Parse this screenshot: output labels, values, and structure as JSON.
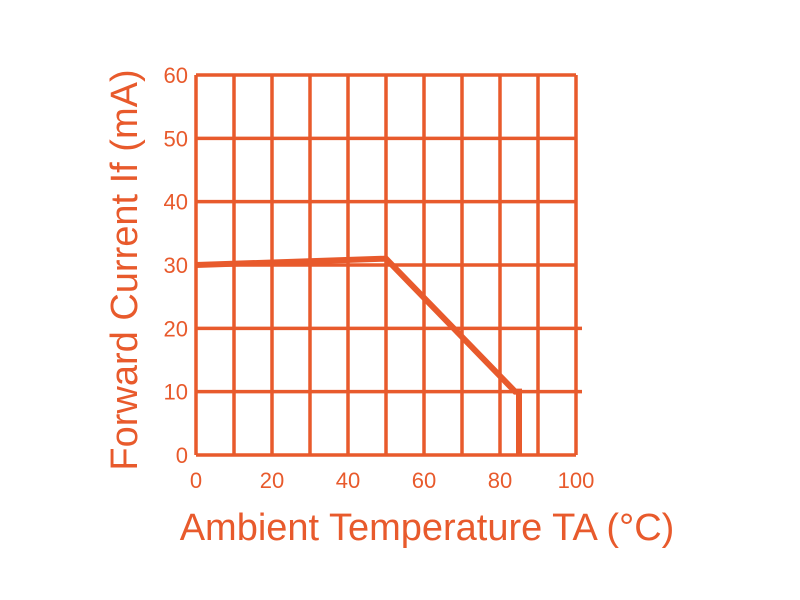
{
  "chart_data": {
    "type": "line",
    "xlabel": "Ambient Temperature TA (°C)",
    "ylabel": "Forward Current If (mA)",
    "xlim": [
      0,
      100
    ],
    "ylim": [
      0,
      60
    ],
    "x_ticks": [
      "0",
      "20",
      "40",
      "60",
      "80",
      "100"
    ],
    "y_ticks": [
      "0",
      "10",
      "20",
      "30",
      "40",
      "50",
      "60"
    ],
    "grid": true,
    "x_grid_step": 10,
    "y_grid_step": 10,
    "series": [
      {
        "x": [
          0,
          50,
          84,
          85,
          85
        ],
        "y": [
          30,
          31,
          10,
          10,
          0
        ]
      }
    ],
    "color": "#e85a2c"
  }
}
